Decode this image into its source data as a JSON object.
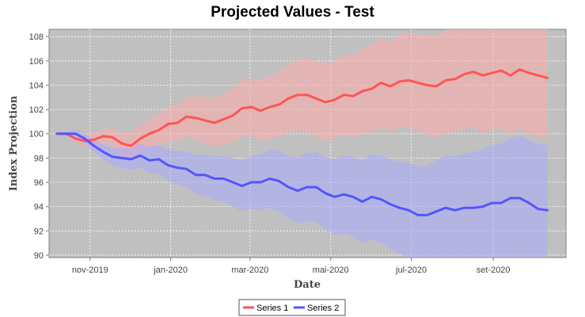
{
  "chart_data": {
    "type": "line",
    "title": "Projected Values - Test",
    "xlabel": "Date",
    "ylabel": "Index Projection",
    "ylim": [
      89.8,
      108.6
    ],
    "xlim": [
      "2019-10-01",
      "2020-10-26"
    ],
    "y_ticks": [
      90,
      92,
      94,
      96,
      98,
      100,
      102,
      104,
      106,
      108
    ],
    "x_ticks": [
      {
        "date": "2019-11-01",
        "label": "nov-2019"
      },
      {
        "date": "2020-01-01",
        "label": "jan-2020"
      },
      {
        "date": "2020-03-01",
        "label": "mar-2020"
      },
      {
        "date": "2020-05-01",
        "label": "mai-2020"
      },
      {
        "date": "2020-07-01",
        "label": "jul-2020"
      },
      {
        "date": "2020-09-01",
        "label": "set-2020"
      }
    ],
    "grid": true,
    "legend_position": "bottom-center",
    "plot_background": "#c0c0c0",
    "x": [
      "2019-10-07",
      "2019-10-14",
      "2019-10-21",
      "2019-10-28",
      "2019-11-04",
      "2019-11-11",
      "2019-11-18",
      "2019-11-25",
      "2019-12-02",
      "2019-12-09",
      "2019-12-16",
      "2019-12-23",
      "2019-12-30",
      "2020-01-06",
      "2020-01-13",
      "2020-01-20",
      "2020-01-27",
      "2020-02-03",
      "2020-02-10",
      "2020-02-17",
      "2020-02-24",
      "2020-03-02",
      "2020-03-09",
      "2020-03-16",
      "2020-03-23",
      "2020-03-30",
      "2020-04-06",
      "2020-04-13",
      "2020-04-20",
      "2020-04-27",
      "2020-05-04",
      "2020-05-11",
      "2020-05-18",
      "2020-05-25",
      "2020-06-01",
      "2020-06-08",
      "2020-06-15",
      "2020-06-22",
      "2020-06-29",
      "2020-07-06",
      "2020-07-13",
      "2020-07-20",
      "2020-07-27",
      "2020-08-03",
      "2020-08-10",
      "2020-08-17",
      "2020-08-24",
      "2020-08-31",
      "2020-09-07",
      "2020-09-14",
      "2020-09-21",
      "2020-09-28",
      "2020-10-05",
      "2020-10-12"
    ],
    "series": [
      {
        "name": "Series 1",
        "color": "#ff5555",
        "band_color": "#ffaaaa",
        "values": [
          100.0,
          100.0,
          99.6,
          99.4,
          99.5,
          99.8,
          99.7,
          99.2,
          99.0,
          99.6,
          100.0,
          100.3,
          100.8,
          100.9,
          101.4,
          101.3,
          101.1,
          100.9,
          101.2,
          101.5,
          102.1,
          102.2,
          101.9,
          102.2,
          102.4,
          102.9,
          103.2,
          103.2,
          102.9,
          102.6,
          102.8,
          103.2,
          103.1,
          103.5,
          103.7,
          104.2,
          103.9,
          104.3,
          104.4,
          104.2,
          104.0,
          103.9,
          104.4,
          104.5,
          104.9,
          105.1,
          104.8,
          105.0,
          105.2,
          104.8,
          105.3,
          105.0,
          104.8,
          104.6
        ],
        "upper": [
          100.0,
          100.1,
          99.9,
          99.9,
          100.1,
          100.4,
          100.4,
          100.1,
          100.1,
          100.7,
          101.2,
          101.6,
          102.2,
          102.4,
          103.0,
          103.1,
          103.0,
          102.9,
          103.3,
          103.7,
          104.4,
          104.6,
          104.4,
          104.8,
          105.1,
          105.7,
          106.1,
          106.2,
          106.0,
          105.8,
          106.0,
          106.5,
          106.5,
          107.0,
          107.3,
          107.9,
          107.6,
          108.1,
          108.3,
          108.2,
          108.1,
          108.1,
          108.7,
          108.9,
          109.4,
          109.7,
          109.5,
          109.7,
          110.0,
          109.7,
          110.2,
          110.0,
          109.8,
          109.6
        ],
        "lower": [
          100.0,
          99.9,
          99.3,
          98.9,
          98.9,
          99.2,
          99.0,
          98.3,
          97.9,
          98.5,
          98.8,
          99.0,
          99.4,
          99.4,
          99.8,
          99.5,
          99.2,
          98.9,
          99.1,
          99.3,
          99.8,
          99.8,
          99.4,
          99.6,
          99.7,
          100.1,
          100.3,
          100.2,
          99.8,
          99.4,
          99.6,
          99.9,
          99.7,
          100.0,
          100.1,
          100.5,
          100.2,
          100.5,
          100.5,
          100.2,
          99.9,
          99.7,
          100.1,
          100.1,
          100.4,
          100.5,
          100.1,
          100.3,
          100.4,
          99.9,
          100.4,
          100.0,
          99.8,
          99.6
        ]
      },
      {
        "name": "Series 2",
        "color": "#5555ff",
        "band_color": "#aaaaff",
        "values": [
          100.0,
          100.0,
          100.0,
          99.6,
          99.0,
          98.5,
          98.1,
          98.0,
          97.9,
          98.2,
          97.8,
          97.9,
          97.4,
          97.2,
          97.1,
          96.6,
          96.6,
          96.3,
          96.3,
          96.0,
          95.7,
          96.0,
          96.0,
          96.3,
          96.1,
          95.6,
          95.3,
          95.6,
          95.6,
          95.1,
          94.8,
          95.0,
          94.8,
          94.4,
          94.8,
          94.6,
          94.2,
          93.9,
          93.7,
          93.3,
          93.3,
          93.6,
          93.9,
          93.7,
          93.9,
          93.9,
          94.0,
          94.3,
          94.3,
          94.7,
          94.7,
          94.3,
          93.8,
          93.7
        ],
        "upper": [
          100.0,
          100.1,
          100.4,
          100.0,
          99.5,
          99.1,
          98.8,
          98.8,
          98.8,
          99.2,
          98.9,
          99.1,
          98.7,
          98.6,
          98.6,
          98.2,
          98.3,
          98.1,
          98.2,
          98.0,
          97.8,
          98.2,
          98.3,
          98.7,
          98.6,
          98.2,
          98.0,
          98.4,
          98.5,
          98.1,
          97.9,
          98.2,
          98.1,
          97.8,
          98.3,
          98.2,
          97.9,
          97.7,
          97.6,
          97.3,
          97.4,
          97.8,
          98.2,
          98.1,
          98.4,
          98.5,
          98.7,
          99.1,
          99.2,
          99.7,
          99.8,
          99.5,
          99.1,
          99.1
        ],
        "lower": [
          100.0,
          99.9,
          99.6,
          99.2,
          98.5,
          97.9,
          97.4,
          97.2,
          97.0,
          97.2,
          96.7,
          96.7,
          96.1,
          95.8,
          95.6,
          95.0,
          94.9,
          94.5,
          94.4,
          94.0,
          93.6,
          93.8,
          93.7,
          93.9,
          93.6,
          93.0,
          92.6,
          92.8,
          92.7,
          92.1,
          91.7,
          91.8,
          91.5,
          91.0,
          91.3,
          91.0,
          90.5,
          90.1,
          89.8,
          89.3,
          89.2,
          89.4,
          89.6,
          89.3,
          89.4,
          89.3,
          89.3,
          89.5,
          89.4,
          89.7,
          89.6,
          89.1,
          88.5,
          88.3
        ]
      }
    ]
  }
}
